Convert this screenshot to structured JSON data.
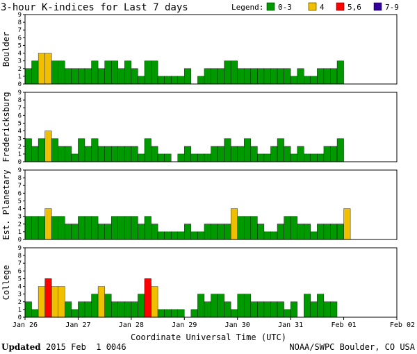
{
  "title": "3-hour K-indices for Last 7 days",
  "legend": {
    "label": "Legend:",
    "items": [
      {
        "label": "0-3",
        "color": "#009900"
      },
      {
        "label": "4",
        "color": "#f0c000"
      },
      {
        "label": "5,6",
        "color": "#ff0000"
      },
      {
        "label": "7-9",
        "color": "#330099"
      }
    ]
  },
  "footer": {
    "updated_label": "Updated",
    "updated_value": "2015 Feb  1 0046",
    "credit": "NOAA/SWPC Boulder, CO USA"
  },
  "chart_data": {
    "type": "bar",
    "title": "3-hour K-indices for Last 7 days",
    "xlabel": "Coordinate Universal Time (UTC)",
    "ylim": [
      0,
      9
    ],
    "yticks": [
      0,
      1,
      2,
      3,
      4,
      5,
      6,
      7,
      8,
      9
    ],
    "x_tick_labels": [
      "Jan 26",
      "Jan 27",
      "Jan 28",
      "Jan 29",
      "Jan 30",
      "Jan 31",
      "Feb 01",
      "Feb 02"
    ],
    "slots_per_day": 8,
    "total_slots": 56,
    "color_scale": {
      "0-3": "#009900",
      "4": "#f0c000",
      "5,6": "#ff0000",
      "7-9": "#330099"
    },
    "series": [
      {
        "name": "Boulder",
        "values": [
          2,
          3,
          4,
          4,
          3,
          3,
          2,
          2,
          2,
          2,
          3,
          2,
          3,
          3,
          2,
          3,
          2,
          1,
          3,
          3,
          1,
          1,
          1,
          1,
          2,
          0,
          1,
          2,
          2,
          2,
          3,
          3,
          2,
          2,
          2,
          2,
          2,
          2,
          2,
          2,
          1,
          2,
          1,
          1,
          2,
          2,
          2,
          3
        ]
      },
      {
        "name": "Fredericksburg",
        "values": [
          3,
          2,
          3,
          4,
          3,
          2,
          2,
          1,
          3,
          2,
          3,
          2,
          2,
          2,
          2,
          2,
          2,
          1,
          3,
          2,
          1,
          1,
          0,
          1,
          2,
          1,
          1,
          1,
          2,
          2,
          3,
          2,
          2,
          3,
          2,
          1,
          1,
          2,
          3,
          2,
          1,
          2,
          1,
          1,
          1,
          2,
          2,
          3
        ]
      },
      {
        "name": "Est. Planetary",
        "values": [
          3,
          3,
          3,
          4,
          3,
          3,
          2,
          2,
          3,
          3,
          3,
          2,
          2,
          3,
          3,
          3,
          3,
          2,
          3,
          2,
          1,
          1,
          1,
          1,
          2,
          1,
          1,
          2,
          2,
          2,
          2,
          4,
          3,
          3,
          3,
          2,
          1,
          1,
          2,
          3,
          3,
          2,
          2,
          1,
          2,
          2,
          2,
          2,
          4
        ]
      },
      {
        "name": "College",
        "values": [
          2,
          1,
          4,
          5,
          4,
          4,
          2,
          1,
          2,
          2,
          3,
          4,
          3,
          2,
          2,
          2,
          2,
          3,
          5,
          4,
          1,
          1,
          1,
          1,
          0,
          1,
          3,
          2,
          3,
          3,
          2,
          1,
          3,
          3,
          2,
          2,
          2,
          2,
          2,
          1,
          2,
          0,
          3,
          2,
          3,
          2,
          2
        ]
      }
    ]
  }
}
